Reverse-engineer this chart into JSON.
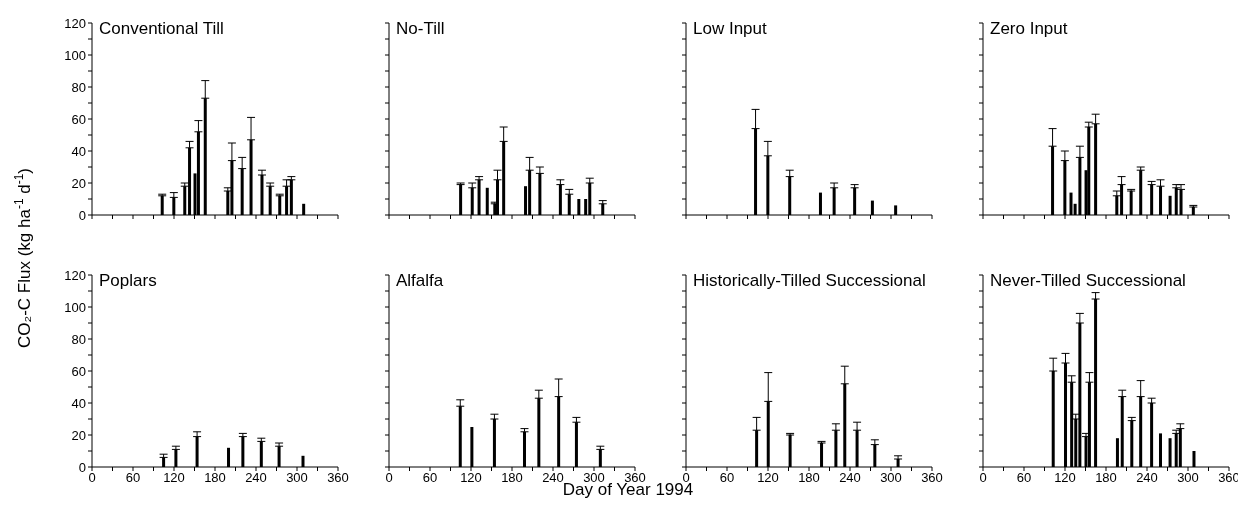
{
  "chart_data": [
    {
      "type": "bar",
      "title": "Conventional Till",
      "ylabel": "CO₂-C Flux (kg ha$^{-1}$ d$^{-1}$)",
      "x": [
        103,
        120,
        136,
        143,
        151,
        156,
        166,
        199,
        205,
        220,
        233,
        249,
        261,
        275,
        285,
        292,
        310
      ],
      "series": [
        {
          "color": "#000000",
          "values": [
            12,
            11,
            18,
            42,
            26,
            52,
            73,
            15,
            34,
            29,
            47,
            25,
            18,
            12,
            18,
            22,
            7
          ],
          "errors": [
            [
              12,
              13
            ],
            [
              11,
              14
            ],
            [
              18,
              20
            ],
            [
              42,
              46
            ],
            null,
            [
              52,
              59
            ],
            [
              73,
              84
            ],
            [
              15,
              17
            ],
            [
              34,
              45
            ],
            [
              29,
              36
            ],
            [
              47,
              61
            ],
            [
              25,
              28
            ],
            [
              18,
              20
            ],
            [
              12,
              13
            ],
            [
              18,
              22
            ],
            [
              22,
              24
            ],
            null
          ]
        }
      ],
      "xlim": [
        0,
        360
      ],
      "xticks": [
        0,
        {
          "value": 30,
          "label": null
        },
        60,
        {
          "value": 90,
          "label": null
        },
        120,
        {
          "value": 150,
          "label": null
        },
        180,
        {
          "value": 210,
          "label": null
        },
        240,
        {
          "value": 270,
          "label": null
        },
        300,
        {
          "value": 330,
          "label": null
        },
        360
      ],
      "ylim": [
        0,
        120
      ],
      "yticks": [
        0,
        {
          "value": 10,
          "label": null
        },
        20,
        {
          "value": 30,
          "label": null
        },
        40,
        {
          "value": 50,
          "label": null
        },
        60,
        {
          "value": 70,
          "label": null
        },
        80,
        {
          "value": 90,
          "label": null
        },
        100,
        {
          "value": 110,
          "label": null
        },
        120
      ],
      "tick_labels": "y",
      "grid": false,
      "legend": false
    },
    {
      "type": "bar",
      "title": "No-Till",
      "x": [
        105,
        122,
        132,
        144,
        155,
        159,
        168,
        200,
        206,
        221,
        251,
        264,
        278,
        288,
        294,
        313
      ],
      "series": [
        {
          "color": "#000000",
          "values": [
            19,
            17,
            22,
            17,
            7,
            22,
            46,
            18,
            28,
            26,
            19,
            13,
            10,
            10,
            20,
            7
          ],
          "errors": [
            [
              19,
              20
            ],
            [
              17,
              20
            ],
            [
              22,
              24
            ],
            null,
            [
              7,
              8
            ],
            [
              22,
              28
            ],
            [
              46,
              55
            ],
            null,
            [
              28,
              36
            ],
            [
              26,
              30
            ],
            [
              19,
              22
            ],
            [
              13,
              16
            ],
            null,
            null,
            [
              20,
              23
            ],
            [
              7,
              9
            ]
          ]
        }
      ],
      "xlim": [
        0,
        360
      ],
      "xticks": [
        0,
        {
          "value": 30,
          "label": null
        },
        60,
        {
          "value": 90,
          "label": null
        },
        120,
        {
          "value": 150,
          "label": null
        },
        180,
        {
          "value": 210,
          "label": null
        },
        240,
        {
          "value": 270,
          "label": null
        },
        300,
        {
          "value": 330,
          "label": null
        },
        360
      ],
      "ylim": [
        0,
        120
      ],
      "yticks": [
        0,
        {
          "value": 10,
          "label": null
        },
        20,
        {
          "value": 30,
          "label": null
        },
        40,
        {
          "value": 50,
          "label": null
        },
        60,
        {
          "value": 70,
          "label": null
        },
        80,
        {
          "value": 90,
          "label": null
        },
        100,
        {
          "value": 110,
          "label": null
        },
        120
      ],
      "tick_labels": false,
      "grid": false,
      "legend": false
    },
    {
      "type": "bar",
      "title": "Low Input",
      "x": [
        102,
        120,
        152,
        197,
        217,
        247,
        273,
        307
      ],
      "series": [
        {
          "color": "#000000",
          "values": [
            54,
            37,
            24,
            14,
            17,
            17,
            9,
            6
          ],
          "errors": [
            [
              54,
              66
            ],
            [
              37,
              46
            ],
            [
              24,
              28
            ],
            null,
            [
              17,
              20
            ],
            [
              17,
              19
            ],
            null,
            null
          ]
        }
      ],
      "xlim": [
        0,
        360
      ],
      "xticks": [
        0,
        {
          "value": 30,
          "label": null
        },
        60,
        {
          "value": 90,
          "label": null
        },
        120,
        {
          "value": 150,
          "label": null
        },
        180,
        {
          "value": 210,
          "label": null
        },
        240,
        {
          "value": 270,
          "label": null
        },
        300,
        {
          "value": 330,
          "label": null
        },
        360
      ],
      "ylim": [
        0,
        120
      ],
      "yticks": [
        0,
        {
          "value": 10,
          "label": null
        },
        20,
        {
          "value": 30,
          "label": null
        },
        40,
        {
          "value": 50,
          "label": null
        },
        60,
        {
          "value": 70,
          "label": null
        },
        80,
        {
          "value": 90,
          "label": null
        },
        100,
        {
          "value": 110,
          "label": null
        },
        120
      ],
      "tick_labels": false,
      "grid": false,
      "legend": false
    },
    {
      "type": "bar",
      "title": "Zero Input",
      "x": [
        102,
        120,
        129,
        135,
        142,
        151,
        155,
        165,
        196,
        203,
        217,
        231,
        247,
        260,
        274,
        283,
        290,
        308
      ],
      "series": [
        {
          "color": "#000000",
          "values": [
            43,
            34,
            14,
            7,
            36,
            28,
            55,
            57,
            12,
            19,
            15,
            28,
            19,
            18,
            12,
            17,
            16,
            5
          ],
          "errors": [
            [
              43,
              54
            ],
            [
              34,
              40
            ],
            null,
            null,
            [
              36,
              43
            ],
            null,
            [
              55,
              58
            ],
            [
              57,
              63
            ],
            [
              12,
              15
            ],
            [
              19,
              24
            ],
            [
              15,
              16
            ],
            [
              28,
              30
            ],
            [
              19,
              21
            ],
            [
              18,
              22
            ],
            null,
            [
              17,
              19
            ],
            [
              16,
              19
            ],
            [
              5,
              6
            ]
          ]
        }
      ],
      "xlim": [
        0,
        360
      ],
      "xticks": [
        0,
        {
          "value": 30,
          "label": null
        },
        60,
        {
          "value": 90,
          "label": null
        },
        120,
        {
          "value": 150,
          "label": null
        },
        180,
        {
          "value": 210,
          "label": null
        },
        240,
        {
          "value": 270,
          "label": null
        },
        300,
        {
          "value": 330,
          "label": null
        },
        360
      ],
      "ylim": [
        0,
        120
      ],
      "yticks": [
        0,
        {
          "value": 10,
          "label": null
        },
        20,
        {
          "value": 30,
          "label": null
        },
        40,
        {
          "value": 50,
          "label": null
        },
        60,
        {
          "value": 70,
          "label": null
        },
        80,
        {
          "value": 90,
          "label": null
        },
        100,
        {
          "value": 110,
          "label": null
        },
        120
      ],
      "tick_labels": false,
      "grid": false,
      "legend": false
    },
    {
      "type": "bar",
      "title": "Poplars",
      "x": [
        105,
        123,
        154,
        200,
        221,
        248,
        274,
        309
      ],
      "series": [
        {
          "color": "#000000",
          "values": [
            6,
            11,
            19,
            12,
            19,
            16,
            13,
            7
          ],
          "errors": [
            [
              6,
              8
            ],
            [
              11,
              13
            ],
            [
              19,
              22
            ],
            null,
            [
              19,
              21
            ],
            [
              16,
              18
            ],
            [
              13,
              15
            ],
            null
          ]
        }
      ],
      "xlim": [
        0,
        360
      ],
      "xticks": [
        0,
        {
          "value": 30,
          "label": null
        },
        60,
        {
          "value": 90,
          "label": null
        },
        120,
        {
          "value": 150,
          "label": null
        },
        180,
        {
          "value": 210,
          "label": null
        },
        240,
        {
          "value": 270,
          "label": null
        },
        300,
        {
          "value": 330,
          "label": null
        },
        360
      ],
      "ylim": [
        0,
        120
      ],
      "yticks": [
        0,
        {
          "value": 10,
          "label": null
        },
        20,
        {
          "value": 30,
          "label": null
        },
        40,
        {
          "value": 50,
          "label": null
        },
        60,
        {
          "value": 70,
          "label": null
        },
        80,
        {
          "value": 90,
          "label": null
        },
        100,
        {
          "value": 110,
          "label": null
        },
        120
      ],
      "grid": false,
      "legend": false
    },
    {
      "type": "bar",
      "title": "Alfalfa",
      "xlabel": "Day of Year 1994",
      "x": [
        104,
        121,
        154,
        198,
        219,
        248,
        274,
        309
      ],
      "series": [
        {
          "color": "#000000",
          "values": [
            38,
            25,
            30,
            22,
            43,
            44,
            28,
            11
          ],
          "errors": [
            [
              38,
              42
            ],
            null,
            [
              30,
              33
            ],
            [
              22,
              24
            ],
            [
              43,
              48
            ],
            [
              44,
              55
            ],
            [
              28,
              31
            ],
            [
              11,
              13
            ]
          ]
        }
      ],
      "xlim": [
        0,
        360
      ],
      "xticks": [
        0,
        {
          "value": 30,
          "label": null
        },
        60,
        {
          "value": 90,
          "label": null
        },
        120,
        {
          "value": 150,
          "label": null
        },
        180,
        {
          "value": 210,
          "label": null
        },
        240,
        {
          "value": 270,
          "label": null
        },
        300,
        {
          "value": 330,
          "label": null
        },
        360
      ],
      "ylim": [
        0,
        120
      ],
      "yticks": [
        0,
        {
          "value": 10,
          "label": null
        },
        20,
        {
          "value": 30,
          "label": null
        },
        40,
        {
          "value": 50,
          "label": null
        },
        60,
        {
          "value": 70,
          "label": null
        },
        80,
        {
          "value": 90,
          "label": null
        },
        100,
        {
          "value": 110,
          "label": null
        },
        120
      ],
      "tick_labels": "x",
      "grid": false,
      "legend": false
    },
    {
      "type": "bar",
      "title": "Historically-Tilled Successional",
      "x": [
        104,
        121,
        153,
        199,
        220,
        233,
        251,
        277,
        311
      ],
      "series": [
        {
          "color": "#000000",
          "values": [
            23,
            41,
            20,
            15,
            23,
            52,
            23,
            14,
            5
          ],
          "errors": [
            [
              23,
              31
            ],
            [
              41,
              59
            ],
            [
              20,
              21
            ],
            [
              15,
              16
            ],
            [
              23,
              27
            ],
            [
              52,
              63
            ],
            [
              23,
              28
            ],
            [
              14,
              17
            ],
            [
              5,
              7
            ]
          ]
        }
      ],
      "xlim": [
        0,
        360
      ],
      "xticks": [
        0,
        {
          "value": 30,
          "label": null
        },
        60,
        {
          "value": 90,
          "label": null
        },
        120,
        {
          "value": 150,
          "label": null
        },
        180,
        {
          "value": 210,
          "label": null
        },
        240,
        {
          "value": 270,
          "label": null
        },
        300,
        {
          "value": 330,
          "label": null
        },
        360
      ],
      "ylim": [
        0,
        120
      ],
      "yticks": [
        0,
        {
          "value": 10,
          "label": null
        },
        20,
        {
          "value": 30,
          "label": null
        },
        40,
        {
          "value": 50,
          "label": null
        },
        60,
        {
          "value": 70,
          "label": null
        },
        80,
        {
          "value": 90,
          "label": null
        },
        100,
        {
          "value": 110,
          "label": null
        },
        120
      ],
      "tick_labels": "x",
      "grid": false,
      "legend": false
    },
    {
      "type": "bar",
      "title": "Never-Tilled Successional",
      "x": [
        103,
        121,
        130,
        136,
        142,
        151,
        156,
        165,
        197,
        204,
        218,
        231,
        247,
        260,
        274,
        283,
        289,
        309
      ],
      "series": [
        {
          "color": "#000000",
          "values": [
            60,
            65,
            53,
            30,
            90,
            19,
            53,
            105,
            18,
            44,
            29,
            44,
            40,
            21,
            18,
            21,
            24,
            10
          ],
          "errors": [
            [
              60,
              68
            ],
            [
              65,
              71
            ],
            [
              53,
              57
            ],
            [
              30,
              33
            ],
            [
              90,
              96
            ],
            [
              19,
              21
            ],
            [
              53,
              59
            ],
            [
              105,
              109
            ],
            null,
            [
              44,
              48
            ],
            [
              29,
              31
            ],
            [
              44,
              54
            ],
            [
              40,
              43
            ],
            null,
            null,
            [
              21,
              23
            ],
            [
              24,
              27
            ],
            null
          ]
        }
      ],
      "xlim": [
        0,
        360
      ],
      "xticks": [
        0,
        {
          "value": 30,
          "label": null
        },
        60,
        {
          "value": 90,
          "label": null
        },
        120,
        {
          "value": 150,
          "label": null
        },
        180,
        {
          "value": 210,
          "label": null
        },
        240,
        {
          "value": 270,
          "label": null
        },
        300,
        {
          "value": 330,
          "label": null
        },
        360
      ],
      "ylim": [
        0,
        120
      ],
      "yticks": [
        0,
        {
          "value": 10,
          "label": null
        },
        20,
        {
          "value": 30,
          "label": null
        },
        40,
        {
          "value": 50,
          "label": null
        },
        60,
        {
          "value": 70,
          "label": null
        },
        80,
        {
          "value": 90,
          "label": null
        },
        100,
        {
          "value": 110,
          "label": null
        },
        120
      ],
      "tick_labels": "x",
      "grid": false,
      "legend": false
    }
  ]
}
